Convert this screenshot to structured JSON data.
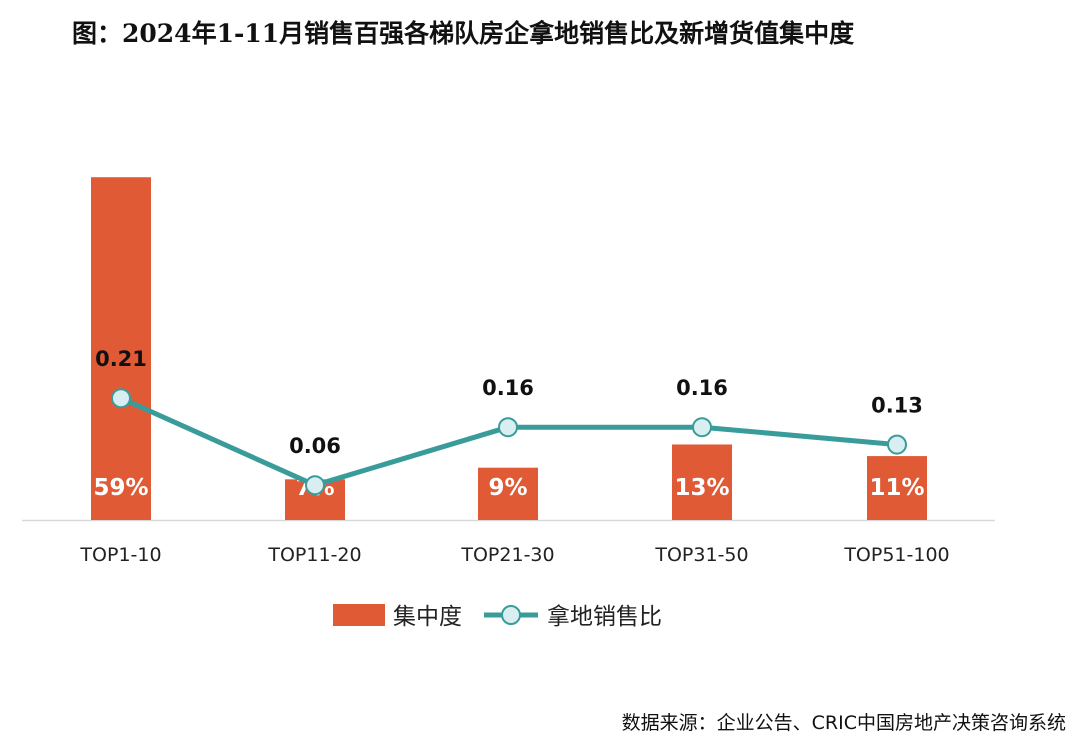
{
  "title": "图：2024年1-11月销售百强各梯队房企拿地销售比及新增货值集中度",
  "source": "数据来源：企业公告、CRIC中国房地产决策咨询系统",
  "chart_data": {
    "type": "bar+line",
    "categories": [
      "TOP1-10",
      "TOP11-20",
      "TOP21-30",
      "TOP31-50",
      "TOP51-100"
    ],
    "series": [
      {
        "name": "集中度",
        "type": "bar",
        "values": [
          59,
          7,
          9,
          13,
          11
        ],
        "labels": [
          "59%",
          "7%",
          "9%",
          "13%",
          "11%"
        ],
        "color": "#E05A36"
      },
      {
        "name": "拿地销售比",
        "type": "line",
        "values": [
          0.21,
          0.06,
          0.16,
          0.16,
          0.13
        ],
        "labels": [
          "0.21",
          "0.06",
          "0.16",
          "0.16",
          "0.13"
        ],
        "color": "#3A9C9A",
        "marker_fill": "#D8EEF0"
      }
    ],
    "legend": "bottom",
    "grid": false,
    "axes_visible": false
  }
}
